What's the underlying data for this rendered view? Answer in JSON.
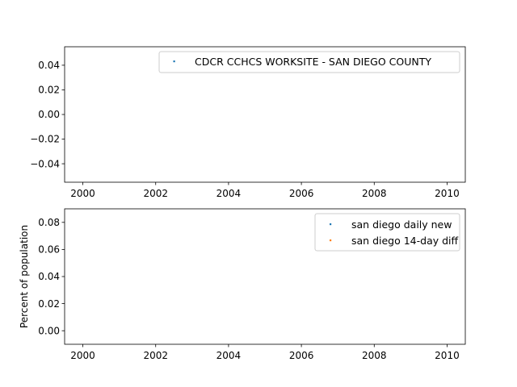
{
  "chart_data": [
    {
      "type": "scatter",
      "title": "",
      "xlabel": "",
      "ylabel": "",
      "xlim": [
        1999.5,
        2010.5
      ],
      "ylim": [
        -0.055,
        0.055
      ],
      "xticks": [
        2000,
        2002,
        2004,
        2006,
        2008,
        2010
      ],
      "xtick_labels": [
        "2000",
        "2002",
        "2004",
        "2006",
        "2008",
        "2010"
      ],
      "yticks": [
        0.04,
        0.02,
        0.0,
        -0.02,
        -0.04
      ],
      "ytick_labels": [
        "0.04",
        "0.02",
        "0.00",
        "−0.02",
        "−0.04"
      ],
      "grid": false,
      "legend_position": "upper right",
      "series": [
        {
          "name": "CDCR CCHCS WORKSITE - SAN DIEGO COUNTY",
          "color": "#1f77b4",
          "points": []
        }
      ]
    },
    {
      "type": "scatter",
      "title": "",
      "xlabel": "",
      "ylabel": "Percent of population",
      "xlim": [
        1999.5,
        2010.5
      ],
      "ylim": [
        -0.01,
        0.09
      ],
      "xticks": [
        2000,
        2002,
        2004,
        2006,
        2008,
        2010
      ],
      "xtick_labels": [
        "2000",
        "2002",
        "2004",
        "2006",
        "2008",
        "2010"
      ],
      "yticks": [
        0.08,
        0.06,
        0.04,
        0.02,
        0.0
      ],
      "ytick_labels": [
        "0.08",
        "0.06",
        "0.04",
        "0.02",
        "0.00"
      ],
      "grid": false,
      "legend_position": "upper right",
      "series": [
        {
          "name": "san diego daily new",
          "color": "#1f77b4",
          "points": []
        },
        {
          "name": "san diego 14-day diff",
          "color": "#ff7f0e",
          "points": []
        }
      ]
    }
  ]
}
